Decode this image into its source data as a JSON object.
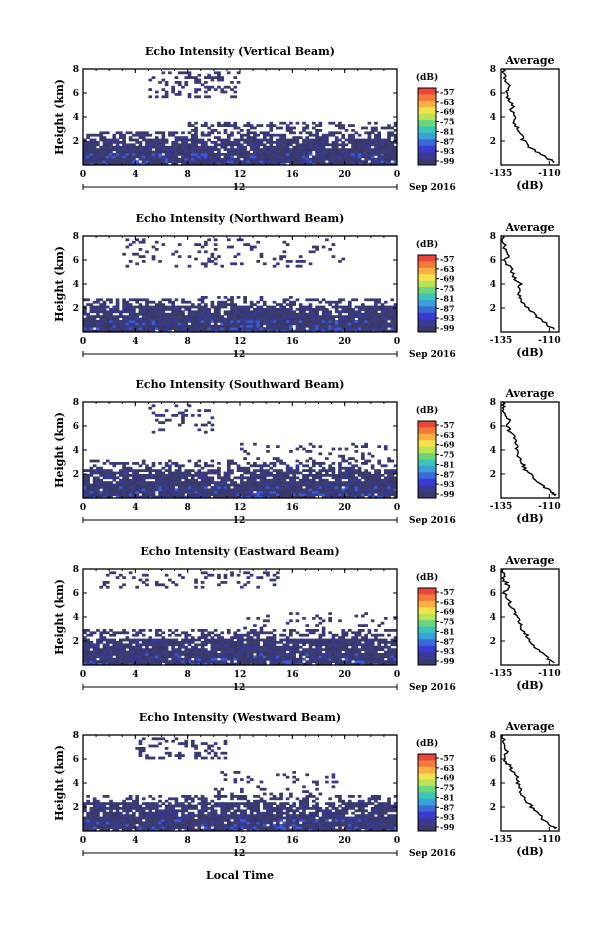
{
  "figure": {
    "xlabel": "Local Time",
    "date_label": "Sep 2016",
    "day_label": "12",
    "colorbar": {
      "unit": "(dB)",
      "ticks": [
        "-57",
        "-63",
        "-69",
        "-75",
        "-81",
        "-87",
        "-93",
        "-99"
      ],
      "colors": [
        "#e8473a",
        "#f47a3c",
        "#f8b040",
        "#f4e24a",
        "#b8e454",
        "#6cd47a",
        "#3cc4b8",
        "#3aa0d8",
        "#3a6ad8",
        "#3a3ad0",
        "#383898",
        "#3a3a6c"
      ]
    }
  },
  "chart_data": [
    {
      "type": "heatmap",
      "title": "Echo Intensity (Vertical Beam)",
      "ylabel": "Height (km)",
      "xlim": [
        0,
        24
      ],
      "ylim": [
        0,
        8
      ],
      "xticks": [
        "0",
        "4",
        "8",
        "12",
        "16",
        "20",
        "0"
      ],
      "yticks": [
        "2",
        "4",
        "6",
        "8"
      ],
      "seed": 11,
      "layers": [
        {
          "y0": 0.0,
          "y1": 1.5,
          "density": 0.97
        },
        {
          "y0": 1.5,
          "y1": 2.3,
          "density": 0.85
        },
        {
          "y0": 2.3,
          "y1": 2.9,
          "density": 0.55
        },
        {
          "y0": 2.9,
          "y1": 3.6,
          "density": 0.35,
          "x_from": 8
        },
        {
          "y0": 5.6,
          "y1": 7.9,
          "density": 0.28,
          "x_from": 5,
          "x_to": 12
        }
      ],
      "profile": {
        "title": "Average",
        "xlabel": "(dB)",
        "xlim": [
          -135,
          -105
        ],
        "xticks": [
          "-135",
          "-110"
        ],
        "yticks": [
          "2",
          "4",
          "6",
          "8"
        ],
        "height": [
          0.2,
          0.5,
          1.0,
          1.5,
          2.0,
          2.5,
          3.0,
          3.5,
          4.0,
          4.5,
          5.0,
          5.5,
          6.0,
          6.5,
          7.0,
          7.5,
          8.0
        ],
        "value": [
          -107,
          -110,
          -115,
          -120,
          -123,
          -125,
          -126,
          -128,
          -127,
          -130,
          -129,
          -131,
          -132,
          -131,
          -133,
          -133,
          -134
        ]
      }
    },
    {
      "type": "heatmap",
      "title": "Echo Intensity (Northward Beam)",
      "ylabel": "Height (km)",
      "xlim": [
        0,
        24
      ],
      "ylim": [
        0,
        8
      ],
      "xticks": [
        "0",
        "4",
        "8",
        "12",
        "16",
        "20",
        "0"
      ],
      "yticks": [
        "2",
        "4",
        "6",
        "8"
      ],
      "seed": 23,
      "layers": [
        {
          "y0": 0.0,
          "y1": 1.4,
          "density": 0.96
        },
        {
          "y0": 1.4,
          "y1": 2.3,
          "density": 0.82
        },
        {
          "y0": 2.3,
          "y1": 2.8,
          "density": 0.4
        },
        {
          "y0": 2.8,
          "y1": 3.1,
          "density": 0.2,
          "x_from": 9,
          "x_to": 16
        },
        {
          "y0": 5.5,
          "y1": 7.8,
          "density": 0.14,
          "x_from": 3,
          "x_to": 20
        }
      ],
      "profile": {
        "title": "Average",
        "xlabel": "(dB)",
        "xlim": [
          -135,
          -105
        ],
        "xticks": [
          "-135",
          "-110"
        ],
        "yticks": [
          "2",
          "4",
          "6",
          "8"
        ],
        "height": [
          0.2,
          0.5,
          1.0,
          1.5,
          2.0,
          2.5,
          3.0,
          3.5,
          4.0,
          4.5,
          5.0,
          5.5,
          6.0,
          6.5,
          7.0,
          7.5,
          8.0
        ],
        "value": [
          -107,
          -110,
          -114,
          -118,
          -121,
          -124,
          -125,
          -126,
          -125,
          -128,
          -129,
          -131,
          -133,
          -131,
          -133,
          -134,
          -134
        ]
      }
    },
    {
      "type": "heatmap",
      "title": "Echo Intensity (Southward Beam)",
      "ylabel": "Height (km)",
      "xlim": [
        0,
        24
      ],
      "ylim": [
        0,
        8
      ],
      "xticks": [
        "0",
        "4",
        "8",
        "12",
        "16",
        "20",
        "0"
      ],
      "yticks": [
        "2",
        "4",
        "6",
        "8"
      ],
      "seed": 37,
      "layers": [
        {
          "y0": 0.0,
          "y1": 1.5,
          "density": 0.96
        },
        {
          "y0": 1.5,
          "y1": 2.4,
          "density": 0.78
        },
        {
          "y0": 2.4,
          "y1": 3.2,
          "density": 0.35
        },
        {
          "y0": 3.2,
          "y1": 4.7,
          "density": 0.15,
          "x_from": 12
        },
        {
          "y0": 5.5,
          "y1": 7.9,
          "density": 0.2,
          "x_from": 5,
          "x_to": 10
        }
      ],
      "profile": {
        "title": "Average",
        "xlabel": "(dB)",
        "xlim": [
          -135,
          -105
        ],
        "xticks": [
          "-135",
          "-110"
        ],
        "yticks": [
          "2",
          "4",
          "6",
          "8"
        ],
        "height": [
          0.2,
          0.5,
          1.0,
          1.5,
          2.0,
          2.5,
          3.0,
          3.5,
          4.0,
          4.5,
          5.0,
          5.5,
          6.0,
          6.5,
          7.0,
          7.5,
          8.0
        ],
        "value": [
          -107,
          -109,
          -113,
          -117,
          -120,
          -123,
          -124,
          -126,
          -126,
          -128,
          -128,
          -130,
          -132,
          -131,
          -133,
          -134,
          -134
        ]
      }
    },
    {
      "type": "heatmap",
      "title": "Echo Intensity (Eastward Beam)",
      "ylabel": "Height (km)",
      "xlim": [
        0,
        24
      ],
      "ylim": [
        0,
        8
      ],
      "xticks": [
        "0",
        "4",
        "8",
        "12",
        "16",
        "20",
        "0"
      ],
      "yticks": [
        "2",
        "4",
        "6",
        "8"
      ],
      "seed": 53,
      "layers": [
        {
          "y0": 0.0,
          "y1": 1.4,
          "density": 0.95
        },
        {
          "y0": 1.4,
          "y1": 2.3,
          "density": 0.8
        },
        {
          "y0": 2.3,
          "y1": 3.0,
          "density": 0.4
        },
        {
          "y0": 3.0,
          "y1": 4.5,
          "density": 0.12,
          "x_from": 12
        },
        {
          "y0": 6.5,
          "y1": 7.9,
          "density": 0.2,
          "x_from": 1,
          "x_to": 15
        }
      ],
      "profile": {
        "title": "Average",
        "xlabel": "(dB)",
        "xlim": [
          -135,
          -105
        ],
        "xticks": [
          "-135",
          "-110"
        ],
        "yticks": [
          "2",
          "4",
          "6",
          "8"
        ],
        "height": [
          0.2,
          0.5,
          1.0,
          1.5,
          2.0,
          2.5,
          3.0,
          3.5,
          4.0,
          4.5,
          5.0,
          5.5,
          6.0,
          6.5,
          7.0,
          7.5,
          8.0
        ],
        "value": [
          -107,
          -110,
          -114,
          -117,
          -120,
          -122,
          -124,
          -125,
          -127,
          -128,
          -130,
          -131,
          -133,
          -131,
          -133,
          -134,
          -134
        ]
      }
    },
    {
      "type": "heatmap",
      "title": "Echo Intensity (Westward Beam)",
      "ylabel": "Height (km)",
      "xlim": [
        0,
        24
      ],
      "ylim": [
        0,
        8
      ],
      "xticks": [
        "0",
        "4",
        "8",
        "12",
        "16",
        "20",
        "0"
      ],
      "yticks": [
        "2",
        "4",
        "6",
        "8"
      ],
      "seed": 71,
      "layers": [
        {
          "y0": 0.0,
          "y1": 1.5,
          "density": 0.95
        },
        {
          "y0": 1.5,
          "y1": 2.4,
          "density": 0.75
        },
        {
          "y0": 2.4,
          "y1": 3.0,
          "density": 0.35
        },
        {
          "y0": 3.0,
          "y1": 5.0,
          "density": 0.12,
          "x_from": 10,
          "x_to": 20
        },
        {
          "y0": 6.0,
          "y1": 7.9,
          "density": 0.3,
          "x_from": 4,
          "x_to": 11
        }
      ],
      "profile": {
        "title": "Average",
        "xlabel": "(dB)",
        "xlim": [
          -135,
          -105
        ],
        "xticks": [
          "-135",
          "-110"
        ],
        "yticks": [
          "2",
          "4",
          "6",
          "8"
        ],
        "height": [
          0.2,
          0.5,
          1.0,
          1.5,
          2.0,
          2.5,
          3.0,
          3.5,
          4.0,
          4.5,
          5.0,
          5.5,
          6.0,
          6.5,
          7.0,
          7.5,
          8.0
        ],
        "value": [
          -107,
          -109,
          -113,
          -116,
          -119,
          -122,
          -124,
          -125,
          -126,
          -127,
          -129,
          -131,
          -133,
          -132,
          -133,
          -134,
          -134
        ]
      }
    }
  ]
}
